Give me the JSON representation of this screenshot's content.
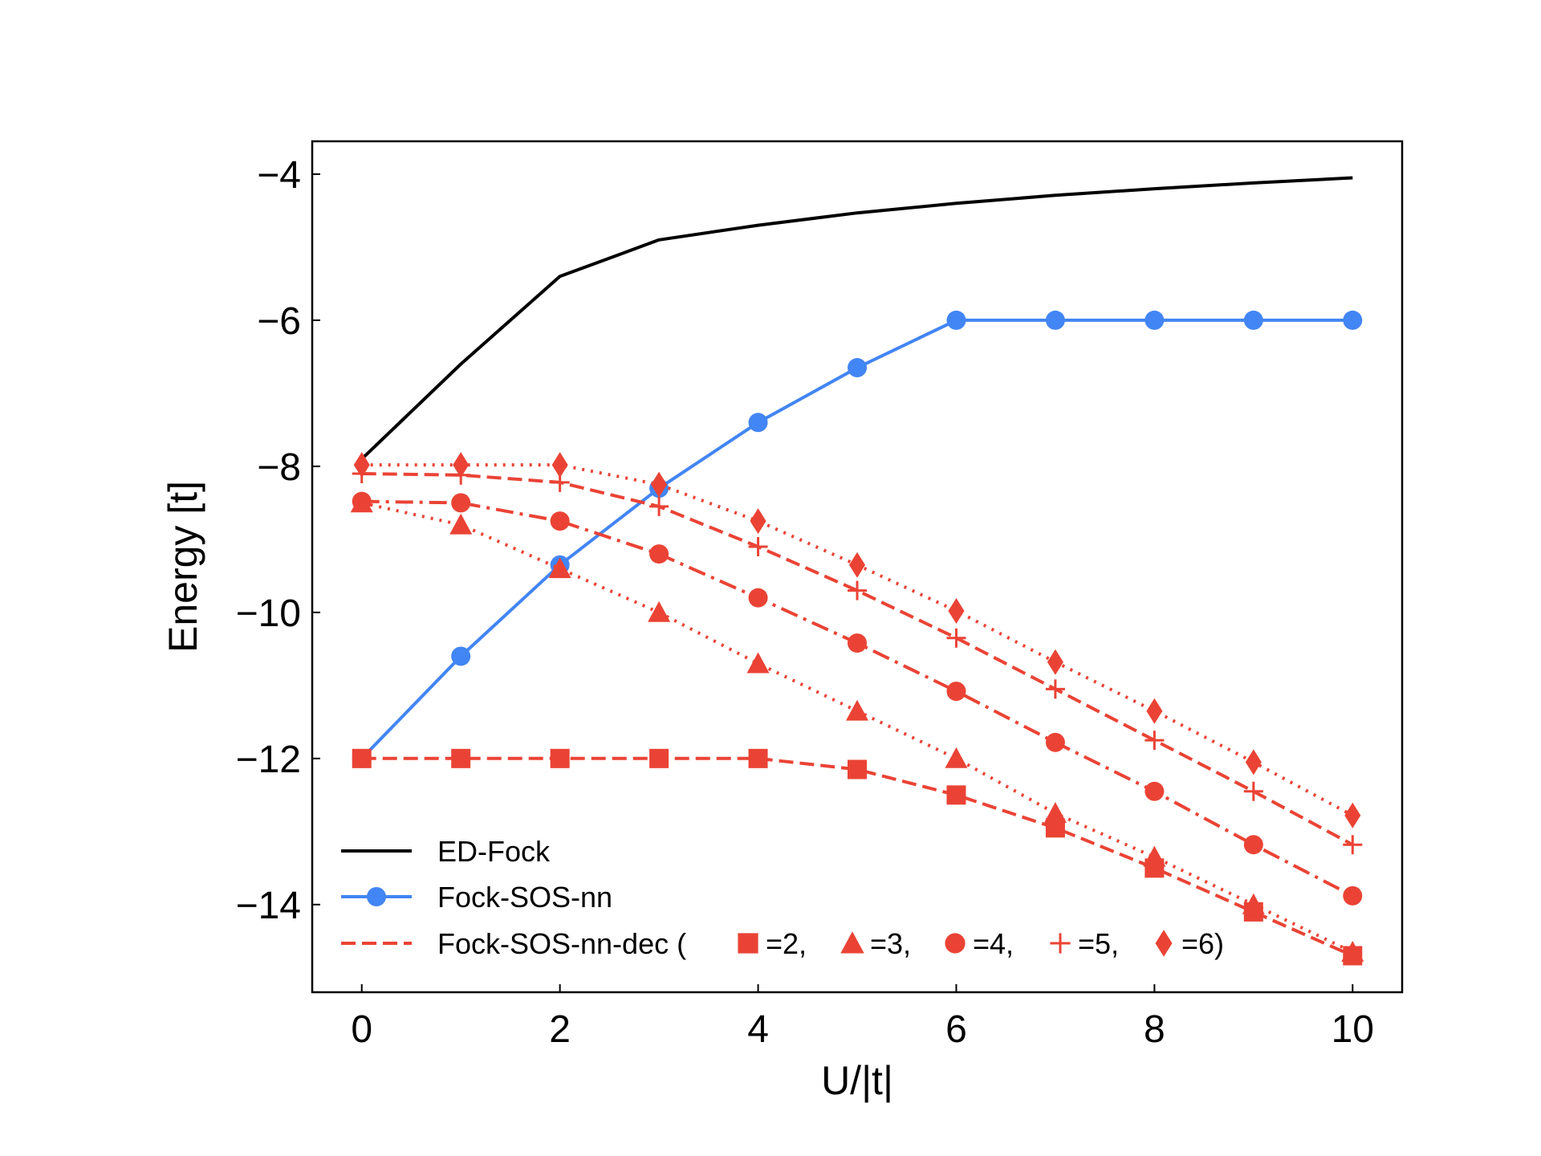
{
  "chart_data": {
    "type": "line",
    "xlabel": "U/|t|",
    "ylabel": "Energy [t]",
    "xlim": [
      -0.5,
      10.5
    ],
    "ylim": [
      -15.2,
      -3.55
    ],
    "xticks": [
      0,
      2,
      4,
      6,
      8,
      10
    ],
    "yticks": [
      -14,
      -12,
      -10,
      -8,
      -6,
      -4
    ],
    "xtick_labels": [
      "0",
      "2",
      "4",
      "6",
      "8",
      "10"
    ],
    "ytick_labels": [
      "−14",
      "−12",
      "−10",
      "−8",
      "−6",
      "−4"
    ],
    "colors": {
      "ed": "#000000",
      "sos": "#4285f4",
      "dec": "#ea4335"
    },
    "x": [
      0,
      1,
      2,
      3,
      4,
      5,
      6,
      7,
      8,
      9,
      10
    ],
    "series": [
      {
        "key": "ed",
        "name": "ED-Fock",
        "style": "solid",
        "marker": "none",
        "values": [
          -7.9,
          -6.6,
          -5.4,
          -4.9,
          -4.7,
          -4.53,
          -4.4,
          -4.29,
          -4.2,
          -4.12,
          -4.05
        ]
      },
      {
        "key": "sos",
        "name": "Fock-SOS-nn",
        "style": "solid",
        "marker": "circle",
        "values": [
          -12.0,
          -10.6,
          -9.35,
          -8.3,
          -7.4,
          -6.65,
          -6.0,
          -6.0,
          -6.0,
          -6.0,
          -6.0
        ]
      },
      {
        "key": "dec2",
        "name": "=2",
        "style": "dashed",
        "marker": "square",
        "values": [
          -12.0,
          -12.0,
          -12.0,
          -12.0,
          -12.0,
          -12.15,
          -12.5,
          -12.95,
          -13.5,
          -14.1,
          -14.7
        ]
      },
      {
        "key": "dec3",
        "name": "=3",
        "style": "dotted",
        "marker": "triangle",
        "values": [
          -8.5,
          -8.8,
          -9.4,
          -10.0,
          -10.7,
          -11.35,
          -12.0,
          -12.75,
          -13.35,
          -14.0,
          -14.65
        ]
      },
      {
        "key": "dec4",
        "name": "=4",
        "style": "dashdot",
        "marker": "circle",
        "values": [
          -8.48,
          -8.5,
          -8.75,
          -9.2,
          -9.8,
          -10.42,
          -11.08,
          -11.78,
          -12.45,
          -13.18,
          -13.88
        ]
      },
      {
        "key": "dec5",
        "name": "=5",
        "style": "dashed",
        "marker": "plus",
        "values": [
          -8.1,
          -8.12,
          -8.22,
          -8.55,
          -9.1,
          -9.7,
          -10.35,
          -11.05,
          -11.75,
          -12.45,
          -13.18
        ]
      },
      {
        "key": "dec6",
        "name": "=6",
        "style": "dotted",
        "marker": "diamond",
        "values": [
          -7.98,
          -7.98,
          -7.98,
          -8.25,
          -8.75,
          -9.35,
          -9.98,
          -10.68,
          -11.35,
          -12.05,
          -12.78
        ]
      }
    ],
    "legend": {
      "placement": "lower-left",
      "ed_label": "ED-Fock",
      "sos_label": "Fock-SOS-nn",
      "dec_prefix": "Fock-SOS-nn-dec (",
      "dec_items": [
        {
          "marker": "square",
          "text": "=2,"
        },
        {
          "marker": "triangle",
          "text": "=3,"
        },
        {
          "marker": "circle",
          "text": "=4,"
        },
        {
          "marker": "plus",
          "text": "=5,"
        },
        {
          "marker": "diamond",
          "text": "=6)"
        }
      ]
    }
  }
}
